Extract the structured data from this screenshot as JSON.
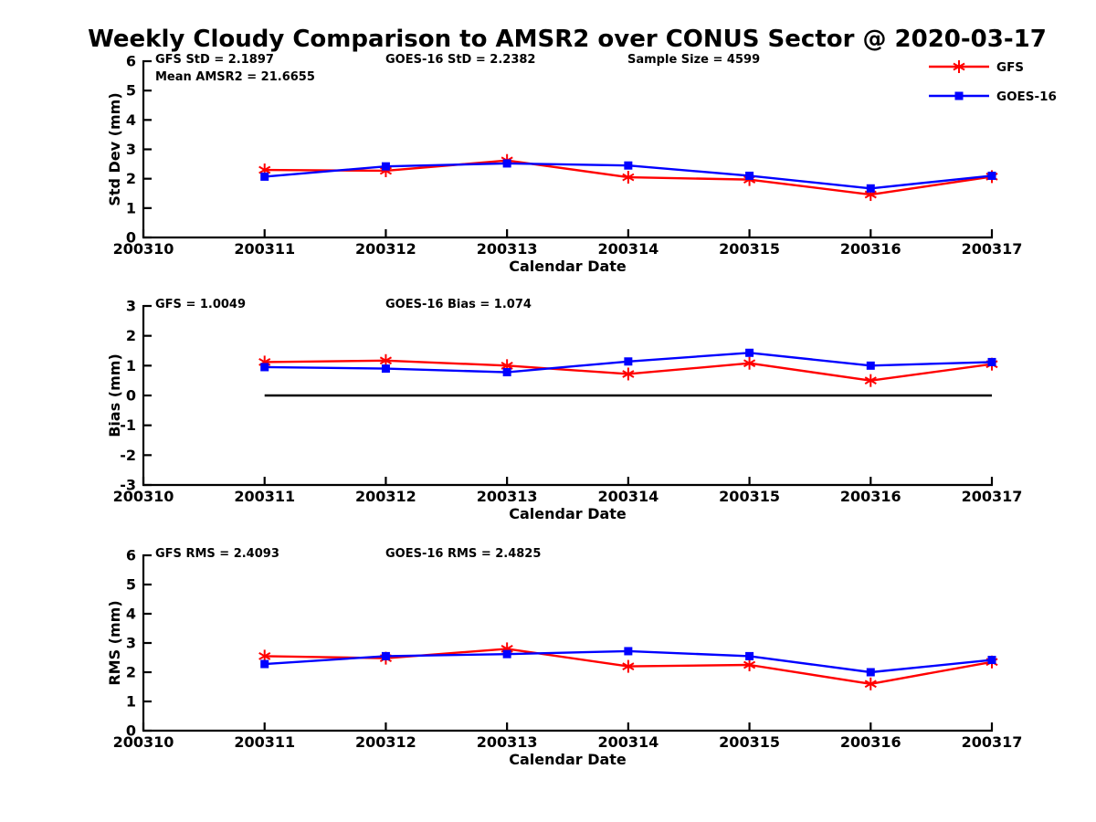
{
  "title": "Weekly Cloudy Comparison to AMSR2 over CONUS Sector @ 2020-03-17",
  "colors": {
    "gfs": "#ff0000",
    "goes16": "#0000ff",
    "axis": "#000000",
    "background": "#ffffff"
  },
  "legend": {
    "position": "top-right",
    "entries": [
      {
        "label": "GFS",
        "color": "#ff0000",
        "marker": "asterisk"
      },
      {
        "label": "GOES-16",
        "color": "#0000ff",
        "marker": "square"
      }
    ]
  },
  "chart_data": [
    {
      "type": "line",
      "id": "std-dev",
      "ylabel": "Std Dev (mm)",
      "xlabel": "Calendar Date",
      "ylim": [
        0,
        6
      ],
      "yticks": [
        0,
        1,
        2,
        3,
        4,
        5,
        6
      ],
      "xticks": [
        "200310",
        "200311",
        "200312",
        "200313",
        "200314",
        "200315",
        "200316",
        "200317"
      ],
      "x": [
        "200311",
        "200312",
        "200313",
        "200314",
        "200315",
        "200316",
        "200317"
      ],
      "grid": false,
      "series": [
        {
          "name": "GFS",
          "color": "#ff0000",
          "marker": "asterisk",
          "values": [
            2.3,
            2.27,
            2.62,
            2.05,
            1.97,
            1.46,
            2.07
          ]
        },
        {
          "name": "GOES-16",
          "color": "#0000ff",
          "marker": "square",
          "values": [
            2.07,
            2.42,
            2.52,
            2.45,
            2.1,
            1.67,
            2.1
          ]
        }
      ],
      "annotations": [
        {
          "text": "GFS StD = 2.1897",
          "col": 0,
          "row": 0
        },
        {
          "text": "Mean AMSR2 = 21.6655",
          "col": 0,
          "row": 1
        },
        {
          "text": "GOES-16 StD = 2.2382",
          "col": 1,
          "row": 0
        },
        {
          "text": "Sample Size = 4599",
          "col": 2,
          "row": 0
        }
      ]
    },
    {
      "type": "line",
      "id": "bias",
      "ylabel": "Bias (mm)",
      "xlabel": "Calendar Date",
      "ylim": [
        -3,
        3
      ],
      "yticks": [
        -3,
        -2,
        -1,
        0,
        1,
        2,
        3
      ],
      "xticks": [
        "200310",
        "200311",
        "200312",
        "200313",
        "200314",
        "200315",
        "200316",
        "200317"
      ],
      "x": [
        "200311",
        "200312",
        "200313",
        "200314",
        "200315",
        "200316",
        "200317"
      ],
      "grid": false,
      "zero_line": {
        "value": 0,
        "from": "200311",
        "to": "200317",
        "color": "#000000"
      },
      "series": [
        {
          "name": "GFS",
          "color": "#ff0000",
          "marker": "asterisk",
          "values": [
            1.12,
            1.17,
            1.0,
            0.72,
            1.08,
            0.5,
            1.05
          ]
        },
        {
          "name": "GOES-16",
          "color": "#0000ff",
          "marker": "square",
          "values": [
            0.95,
            0.9,
            0.78,
            1.14,
            1.43,
            1.0,
            1.12
          ]
        }
      ],
      "annotations": [
        {
          "text": "GFS = 1.0049",
          "col": 0,
          "row": 0
        },
        {
          "text": "GOES-16 Bias  = 1.074",
          "col": 1,
          "row": 0
        }
      ]
    },
    {
      "type": "line",
      "id": "rms",
      "ylabel": "RMS (mm)",
      "xlabel": "Calendar Date",
      "ylim": [
        0,
        6
      ],
      "yticks": [
        0,
        1,
        2,
        3,
        4,
        5,
        6
      ],
      "xticks": [
        "200310",
        "200311",
        "200312",
        "200313",
        "200314",
        "200315",
        "200316",
        "200317"
      ],
      "x": [
        "200311",
        "200312",
        "200313",
        "200314",
        "200315",
        "200316",
        "200317"
      ],
      "grid": false,
      "series": [
        {
          "name": "GFS",
          "color": "#ff0000",
          "marker": "asterisk",
          "values": [
            2.55,
            2.48,
            2.8,
            2.2,
            2.25,
            1.6,
            2.35
          ]
        },
        {
          "name": "GOES-16",
          "color": "#0000ff",
          "marker": "square",
          "values": [
            2.28,
            2.55,
            2.62,
            2.72,
            2.55,
            2.0,
            2.42
          ]
        }
      ],
      "annotations": [
        {
          "text": "GFS RMS = 2.4093",
          "col": 0,
          "row": 0
        },
        {
          "text": "GOES-16 RMS = 2.4825",
          "col": 1,
          "row": 0
        }
      ]
    }
  ]
}
